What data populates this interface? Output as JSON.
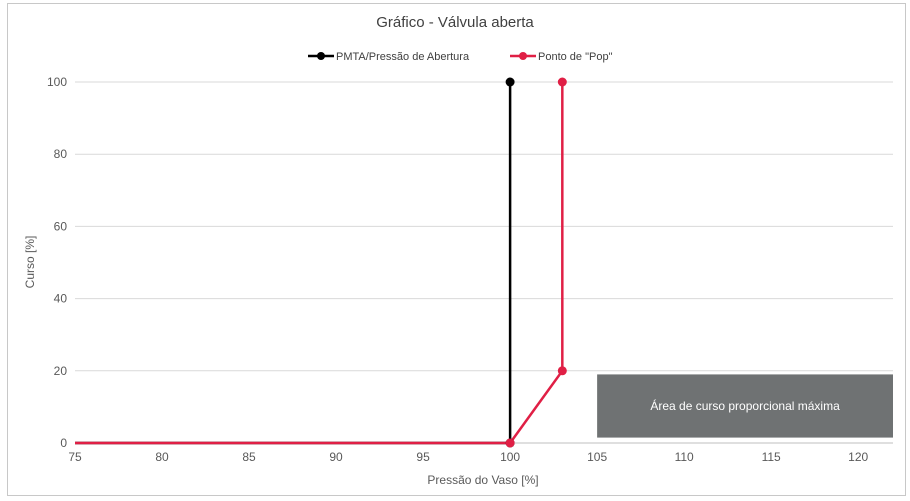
{
  "chart_data": {
    "type": "line",
    "title": "Gráfico - Válvula aberta",
    "xlabel": "Pressão do Vaso [%]",
    "ylabel": "Curso [%]",
    "xlim": [
      75,
      122
    ],
    "ylim": [
      0,
      100
    ],
    "xticks": [
      75,
      80,
      85,
      90,
      95,
      100,
      105,
      110,
      115,
      120
    ],
    "yticks": [
      0,
      20,
      40,
      60,
      80,
      100
    ],
    "grid": "horizontal",
    "legend_position": "top",
    "series": [
      {
        "name": "PMTA/Pressão de Abertura",
        "color": "#000000",
        "points": [
          [
            75,
            0
          ],
          [
            100,
            0
          ],
          [
            100,
            100
          ]
        ],
        "markers": [
          [
            100,
            0
          ],
          [
            100,
            100
          ]
        ]
      },
      {
        "name": "Ponto de \"Pop\"",
        "color": "#e01f45",
        "points": [
          [
            75,
            0
          ],
          [
            100,
            0
          ],
          [
            103,
            20
          ],
          [
            103,
            100
          ]
        ],
        "markers": [
          [
            100,
            0
          ],
          [
            103,
            20
          ],
          [
            103,
            100
          ]
        ]
      }
    ],
    "annotations": [
      {
        "text": "Área de curso proporcional máxima",
        "x_range": [
          105,
          122
        ],
        "y_range": [
          1.5,
          19
        ],
        "color": "#6f7273"
      }
    ]
  }
}
